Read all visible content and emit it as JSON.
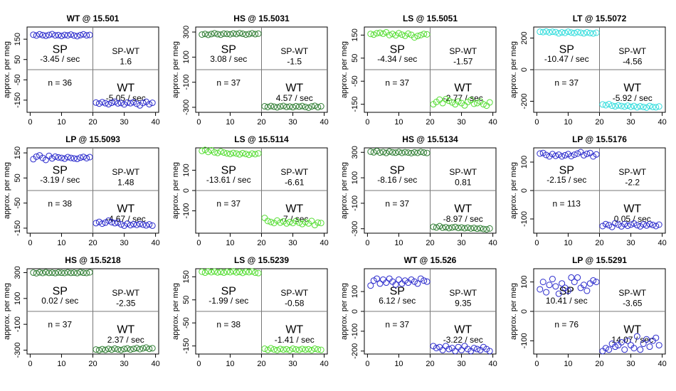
{
  "chart_data": [
    {
      "type": "scatter",
      "title": "WT @ 15.501",
      "ylabel": "approx. per meg",
      "color": "#2a2acc",
      "x": [
        1,
        2,
        3,
        4,
        5,
        6,
        7,
        8,
        9,
        10,
        11,
        12,
        13,
        14,
        15,
        16,
        17,
        18,
        19,
        21,
        22,
        23,
        24,
        25,
        26,
        27,
        28,
        29,
        30,
        31,
        32,
        33,
        34,
        35,
        36,
        37,
        38,
        39
      ],
      "values": [
        172,
        168,
        174,
        170,
        167,
        171,
        175,
        169,
        170,
        166,
        171,
        169,
        173,
        168,
        165,
        170,
        174,
        169,
        171,
        -162,
        -167,
        -160,
        -165,
        -170,
        -163,
        -158,
        -166,
        -164,
        -171,
        -162,
        -165,
        -160,
        -168,
        -176,
        -164,
        -158,
        -170,
        -163
      ],
      "xlim": [
        -1,
        41
      ],
      "xticks": [
        0,
        10,
        20,
        30,
        40
      ],
      "ylim": [
        -210,
        210
      ],
      "yticks": [
        -150,
        -50,
        50,
        150
      ],
      "annotations": [
        "SP",
        "-3.45 / sec",
        "SP-WT",
        "1.6",
        "n = 36",
        "WT",
        "-5.05 / sec"
      ]
    },
    {
      "type": "scatter",
      "title": "HS @ 15.5031",
      "ylabel": "approx. per meg",
      "color": "#2e7d32",
      "x": [
        1,
        2,
        3,
        4,
        5,
        6,
        7,
        8,
        9,
        10,
        11,
        12,
        13,
        14,
        15,
        16,
        17,
        18,
        19,
        21,
        22,
        23,
        24,
        25,
        26,
        27,
        28,
        29,
        30,
        31,
        32,
        33,
        34,
        35,
        36,
        37,
        38,
        39
      ],
      "values": [
        280,
        285,
        278,
        284,
        290,
        283,
        279,
        287,
        285,
        282,
        288,
        284,
        291,
        286,
        280,
        284,
        290,
        283,
        287,
        -292,
        -298,
        -290,
        -295,
        -300,
        -293,
        -289,
        -297,
        -294,
        -299,
        -291,
        -295,
        -290,
        -297,
        -303,
        -293,
        -288,
        -299,
        -292
      ],
      "xlim": [
        -1,
        41
      ],
      "xticks": [
        0,
        10,
        20,
        30,
        40
      ],
      "ylim": [
        -340,
        340
      ],
      "yticks": [
        -300,
        -100,
        100,
        300
      ],
      "annotations": [
        "SP",
        "3.08 / sec",
        "SP-WT",
        "-1.5",
        "n = 37",
        "WT",
        "4.57 / sec"
      ]
    },
    {
      "type": "scatter",
      "title": "LS @ 15.5051",
      "ylabel": "approx. per meg",
      "color": "#55dd33",
      "x": [
        1,
        2,
        3,
        4,
        5,
        6,
        7,
        8,
        9,
        10,
        11,
        12,
        13,
        14,
        15,
        16,
        17,
        18,
        19,
        21,
        22,
        23,
        24,
        25,
        26,
        27,
        28,
        29,
        30,
        31,
        32,
        33,
        34,
        35,
        36,
        37,
        38,
        39
      ],
      "values": [
        155,
        152,
        158,
        160,
        156,
        162,
        150,
        155,
        149,
        158,
        152,
        147,
        156,
        151,
        140,
        146,
        150,
        155,
        153,
        -150,
        -140,
        -130,
        -145,
        -128,
        -135,
        -142,
        -150,
        -138,
        -145,
        -155,
        -140,
        -132,
        -148,
        -145,
        -138,
        -150,
        -156,
        -142
      ],
      "xlim": [
        -1,
        41
      ],
      "xticks": [
        0,
        10,
        20,
        30,
        40
      ],
      "ylim": [
        -185,
        185
      ],
      "yticks": [
        -150,
        -50,
        50,
        150
      ],
      "annotations": [
        "SP",
        "-4.34 / sec",
        "SP-WT",
        "-1.57",
        "n = 37",
        "WT",
        "-2.77 / sec"
      ]
    },
    {
      "type": "scatter",
      "title": "LT @ 15.5072",
      "ylabel": "approx. per meg",
      "color": "#33dddd",
      "x": [
        1,
        2,
        3,
        4,
        5,
        6,
        7,
        8,
        9,
        10,
        11,
        12,
        13,
        14,
        15,
        16,
        17,
        18,
        19,
        21,
        22,
        23,
        24,
        25,
        26,
        27,
        28,
        29,
        30,
        31,
        32,
        33,
        34,
        35,
        36,
        37,
        38,
        39
      ],
      "values": [
        240,
        238,
        242,
        236,
        240,
        238,
        230,
        236,
        233,
        240,
        235,
        232,
        238,
        234,
        230,
        236,
        232,
        229,
        234,
        -220,
        -225,
        -218,
        -228,
        -232,
        -226,
        -230,
        -234,
        -228,
        -235,
        -230,
        -238,
        -232,
        -236,
        -240,
        -230,
        -236,
        -238,
        -233
      ],
      "xlim": [
        -1,
        41
      ],
      "xticks": [
        0,
        10,
        20,
        30,
        40
      ],
      "ylim": [
        -270,
        270
      ],
      "yticks": [
        -200,
        0,
        200
      ],
      "annotations": [
        "SP",
        "-10.47 / sec",
        "SP-WT",
        "-4.56",
        "n = 37",
        "WT",
        "-5.92 / sec"
      ]
    },
    {
      "type": "scatter",
      "title": "LP @ 15.5093",
      "ylabel": "approx. per meg",
      "color": "#2a2acc",
      "x": [
        1,
        2,
        3,
        4,
        5,
        6,
        7,
        8,
        9,
        10,
        11,
        12,
        13,
        14,
        15,
        16,
        17,
        18,
        19,
        21,
        22,
        23,
        24,
        25,
        26,
        27,
        28,
        29,
        30,
        31,
        32,
        33,
        34,
        35,
        36,
        37,
        38,
        39
      ],
      "values": [
        125,
        135,
        140,
        130,
        122,
        138,
        128,
        135,
        132,
        130,
        127,
        133,
        130,
        128,
        126,
        131,
        134,
        129,
        133,
        -130,
        -125,
        -132,
        -128,
        -120,
        -126,
        -130,
        -128,
        -135,
        -140,
        -132,
        -138,
        -134,
        -137,
        -133,
        -136,
        -139,
        -135,
        -140
      ],
      "xlim": [
        -1,
        41
      ],
      "xticks": [
        0,
        10,
        20,
        30,
        40
      ],
      "ylim": [
        -170,
        170
      ],
      "yticks": [
        -150,
        -50,
        50,
        150
      ],
      "annotations": [
        "SP",
        "-3.19 / sec",
        "SP-WT",
        "1.48",
        "n = 38",
        "WT",
        "-4.67 / sec"
      ]
    },
    {
      "type": "scatter",
      "title": "LS @ 15.5114",
      "ylabel": "approx. per meg",
      "color": "#55dd33",
      "x": [
        1,
        2,
        3,
        4,
        5,
        6,
        7,
        8,
        9,
        10,
        11,
        12,
        13,
        14,
        15,
        16,
        17,
        18,
        19,
        21,
        22,
        23,
        24,
        25,
        26,
        27,
        28,
        29,
        30,
        31,
        32,
        33,
        34,
        35,
        36,
        37,
        38,
        39
      ],
      "values": [
        195,
        200,
        190,
        198,
        188,
        185,
        192,
        187,
        183,
        180,
        185,
        182,
        178,
        184,
        180,
        176,
        182,
        179,
        183,
        -135,
        -150,
        -155,
        -160,
        -148,
        -158,
        -152,
        -162,
        -155,
        -160,
        -150,
        -158,
        -165,
        -155,
        -162,
        -150,
        -170,
        -158,
        -160
      ],
      "xlim": [
        -1,
        41
      ],
      "xticks": [
        0,
        10,
        20,
        30,
        40
      ],
      "ylim": [
        -210,
        210
      ],
      "yticks": [
        -100,
        0,
        100
      ],
      "annotations": [
        "SP",
        "-13.61 / sec",
        "SP-WT",
        "-6.61",
        "n = 37",
        "WT",
        "-7 / sec"
      ]
    },
    {
      "type": "scatter",
      "title": "HS @ 15.5134",
      "ylabel": "approx. per meg",
      "color": "#2e7d32",
      "x": [
        1,
        2,
        3,
        4,
        5,
        6,
        7,
        8,
        9,
        10,
        11,
        12,
        13,
        14,
        15,
        16,
        17,
        18,
        19,
        21,
        22,
        23,
        24,
        25,
        26,
        27,
        28,
        29,
        30,
        31,
        32,
        33,
        34,
        35,
        36,
        37,
        38,
        39
      ],
      "values": [
        305,
        300,
        310,
        298,
        302,
        295,
        306,
        300,
        297,
        303,
        296,
        301,
        298,
        294,
        300,
        296,
        303,
        299,
        295,
        -285,
        -290,
        -280,
        -292,
        -288,
        -295,
        -290,
        -286,
        -294,
        -290,
        -296,
        -292,
        -298,
        -294,
        -300,
        -296,
        -302,
        -305,
        -298
      ],
      "xlim": [
        -1,
        41
      ],
      "xticks": [
        0,
        10,
        20,
        30,
        40
      ],
      "ylim": [
        -335,
        335
      ],
      "yticks": [
        -300,
        -100,
        100,
        300
      ],
      "annotations": [
        "SP",
        "-8.16 / sec",
        "SP-WT",
        "0.81",
        "n = 37",
        "WT",
        "-8.97 / sec"
      ]
    },
    {
      "type": "scatter",
      "title": "LP @ 15.5176",
      "ylabel": "approx. per meg",
      "color": "#2a2acc",
      "x": [
        1,
        2,
        3,
        4,
        5,
        6,
        7,
        8,
        9,
        10,
        11,
        12,
        13,
        14,
        15,
        16,
        17,
        18,
        19,
        21,
        22,
        23,
        24,
        25,
        26,
        27,
        28,
        29,
        30,
        31,
        32,
        33,
        34,
        35,
        36,
        37,
        38,
        39
      ],
      "values": [
        130,
        132,
        125,
        120,
        128,
        122,
        126,
        120,
        124,
        128,
        121,
        126,
        130,
        135,
        124,
        129,
        132,
        120,
        127,
        -125,
        -118,
        -122,
        -128,
        -115,
        -120,
        -126,
        -118,
        -124,
        -120,
        -116,
        -122,
        -126,
        -119,
        -123,
        -118,
        -121,
        -125,
        -120
      ],
      "xlim": [
        -1,
        41
      ],
      "xticks": [
        0,
        10,
        20,
        30,
        40
      ],
      "ylim": [
        -150,
        150
      ],
      "yticks": [
        -100,
        0,
        100
      ],
      "annotations": [
        "SP",
        "-2.15 / sec",
        "SP-WT",
        "-2.2",
        "n = 113",
        "WT",
        "0.05 / sec"
      ]
    },
    {
      "type": "scatter",
      "title": "HS @ 15.5218",
      "ylabel": "approx. per meg",
      "color": "#2e7d32",
      "x": [
        1,
        2,
        3,
        4,
        5,
        6,
        7,
        8,
        9,
        10,
        11,
        12,
        13,
        14,
        15,
        16,
        17,
        18,
        19,
        21,
        22,
        23,
        24,
        25,
        26,
        27,
        28,
        29,
        30,
        31,
        32,
        33,
        34,
        35,
        36,
        37,
        38,
        39
      ],
      "values": [
        300,
        295,
        302,
        297,
        303,
        298,
        300,
        296,
        301,
        299,
        297,
        302,
        298,
        300,
        296,
        303,
        299,
        297,
        302,
        -295,
        -300,
        -292,
        -298,
        -290,
        -296,
        -288,
        -294,
        -299,
        -291,
        -287,
        -295,
        -290,
        -284,
        -292,
        -286,
        -280,
        -290,
        -285
      ],
      "xlim": [
        -1,
        41
      ],
      "xticks": [
        0,
        10,
        20,
        30,
        40
      ],
      "ylim": [
        -330,
        330
      ],
      "yticks": [
        -300,
        -100,
        100,
        300
      ],
      "annotations": [
        "SP",
        "0.02 / sec",
        "SP-WT",
        "-2.35",
        "n = 37",
        "WT",
        "2.37 / sec"
      ]
    },
    {
      "type": "scatter",
      "title": "LS @ 15.5239",
      "ylabel": "approx. per meg",
      "color": "#55dd33",
      "x": [
        1,
        2,
        3,
        4,
        5,
        6,
        7,
        8,
        9,
        10,
        11,
        12,
        13,
        14,
        15,
        16,
        17,
        18,
        19,
        21,
        22,
        23,
        24,
        25,
        26,
        27,
        28,
        29,
        30,
        31,
        32,
        33,
        34,
        35,
        36,
        37,
        38,
        39
      ],
      "values": [
        172,
        168,
        174,
        170,
        173,
        169,
        171,
        168,
        172,
        170,
        174,
        169,
        171,
        167,
        172,
        170,
        173,
        168,
        166,
        -162,
        -167,
        -160,
        -165,
        -168,
        -163,
        -166,
        -164,
        -168,
        -162,
        -165,
        -167,
        -163,
        -166,
        -164,
        -168,
        -162,
        -165,
        -167
      ],
      "xlim": [
        -1,
        41
      ],
      "xticks": [
        0,
        10,
        20,
        30,
        40
      ],
      "ylim": [
        -185,
        185
      ],
      "yticks": [
        -150,
        -50,
        50,
        150
      ],
      "annotations": [
        "SP",
        "-1.99 / sec",
        "SP-WT",
        "-0.58",
        "n = 38",
        "WT",
        "-1.41 / sec"
      ]
    },
    {
      "type": "scatter",
      "title": "WT @ 15.526",
      "ylabel": "approx. per meg",
      "color": "#2a2acc",
      "x": [
        1,
        2,
        3,
        4,
        5,
        6,
        7,
        8,
        9,
        10,
        11,
        12,
        13,
        14,
        15,
        16,
        17,
        18,
        19,
        21,
        22,
        23,
        24,
        25,
        26,
        27,
        28,
        29,
        30,
        31,
        32,
        33,
        34,
        35,
        36,
        37,
        38,
        39
      ],
      "values": [
        130,
        155,
        165,
        140,
        160,
        145,
        165,
        150,
        135,
        160,
        140,
        155,
        145,
        160,
        150,
        140,
        165,
        155,
        150,
        -175,
        -185,
        -180,
        -195,
        -175,
        -190,
        -185,
        -200,
        -180,
        -195,
        -175,
        -190,
        -200,
        -185,
        -190,
        -195,
        -180,
        -190,
        -200
      ],
      "xlim": [
        -1,
        41
      ],
      "xticks": [
        0,
        10,
        20,
        30,
        40
      ],
      "ylim": [
        -215,
        215
      ],
      "yticks": [
        -200,
        -100,
        0,
        100
      ],
      "annotations": [
        "SP",
        "6.12 / sec",
        "SP-WT",
        "9.35",
        "n = 37",
        "WT",
        "-3.22 / sec"
      ]
    },
    {
      "type": "scatter",
      "title": "LP @ 15.5291",
      "ylabel": "approx. per meg",
      "color": "#2a2acc",
      "x": [
        1,
        2,
        3,
        4,
        5,
        6,
        7,
        8,
        9,
        10,
        11,
        12,
        13,
        14,
        15,
        16,
        17,
        18,
        19,
        21,
        22,
        23,
        24,
        25,
        26,
        27,
        28,
        29,
        30,
        31,
        32,
        33,
        34,
        35,
        36,
        37,
        38,
        39
      ],
      "values": [
        75,
        100,
        65,
        90,
        110,
        85,
        60,
        95,
        80,
        70,
        115,
        100,
        115,
        80,
        90,
        70,
        95,
        105,
        100,
        -135,
        -125,
        -130,
        -110,
        -120,
        -115,
        -105,
        -130,
        -100,
        -115,
        -125,
        -85,
        -130,
        -110,
        -95,
        -120,
        -100,
        -90,
        -115
      ],
      "xlim": [
        -1,
        41
      ],
      "xticks": [
        0,
        10,
        20,
        30,
        40
      ],
      "ylim": [
        -145,
        145
      ],
      "yticks": [
        -100,
        0,
        100
      ],
      "annotations": [
        "SP",
        "10.41 / sec",
        "SP-WT",
        "-3.65",
        "n = 76",
        "WT",
        "14.07 / sec"
      ]
    }
  ]
}
